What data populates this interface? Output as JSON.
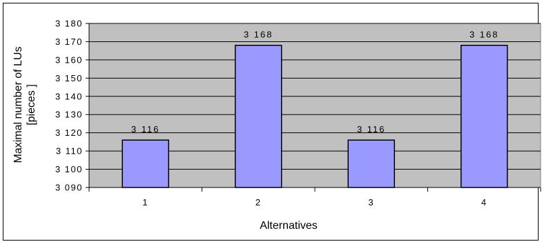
{
  "chart_data": {
    "type": "bar",
    "categories": [
      "1",
      "2",
      "3",
      "4"
    ],
    "values": [
      3116,
      3168,
      3116,
      3168
    ],
    "data_labels": [
      "3 116",
      "3 168",
      "3 116",
      "3 168"
    ],
    "xlabel": "Alternatives",
    "ylabel_lines": [
      "Maximal number of LUs",
      "[pieces ]"
    ],
    "ylim": [
      3090,
      3180
    ],
    "yticks": [
      3090,
      3100,
      3110,
      3120,
      3130,
      3140,
      3150,
      3160,
      3170,
      3180
    ],
    "ytick_labels": [
      "3 090",
      "3 100",
      "3 110",
      "3 120",
      "3 130",
      "3 140",
      "3 150",
      "3 160",
      "3 170",
      "3 180"
    ],
    "grid": true,
    "legend": "none",
    "colors": {
      "bar_fill": "#9999ff",
      "bar_stroke": "#000000",
      "plot_background": "#c0c0c0",
      "grid": "#000000"
    }
  }
}
